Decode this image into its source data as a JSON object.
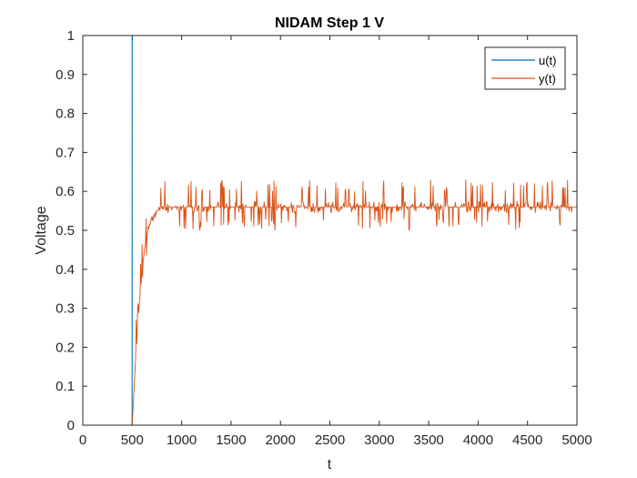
{
  "chart_data": {
    "type": "line",
    "title": "NIDAM Step 1 V",
    "xlabel": "t",
    "ylabel": "Voltage",
    "xlim": [
      0,
      5000
    ],
    "ylim": [
      0,
      1
    ],
    "xticks": [
      0,
      500,
      1000,
      1500,
      2000,
      2500,
      3000,
      3500,
      4000,
      4500,
      5000
    ],
    "xtick_labels": [
      "0",
      "500",
      "1000",
      "1500",
      "2000",
      "2500",
      "3000",
      "3500",
      "4000",
      "4500",
      "5000"
    ],
    "yticks": [
      0,
      0.1,
      0.2,
      0.3,
      0.4,
      0.5,
      0.6,
      0.7,
      0.8,
      0.9,
      1
    ],
    "ytick_labels": [
      "0",
      "0.1",
      "0.2",
      "0.3",
      "0.4",
      "0.5",
      "0.6",
      "0.7",
      "0.8",
      "0.9",
      "1"
    ],
    "grid": false,
    "legend_position": "top-right",
    "series": [
      {
        "name": "u(t)",
        "color": "#0072bd",
        "x": [
          0,
          499,
          500,
          5000
        ],
        "y": [
          0,
          0,
          1,
          1
        ]
      },
      {
        "name": "y(t)",
        "color": "#d95319",
        "x": [
          0,
          500,
          520,
          540,
          560,
          580,
          600,
          620,
          640,
          660,
          680,
          700,
          720,
          740,
          760,
          780,
          800,
          850,
          900,
          1000,
          1100,
          1200,
          1300,
          1400,
          1500,
          1600,
          1700,
          1800,
          1900,
          2000,
          2100,
          2200,
          2300,
          2400,
          2500,
          2600,
          2700,
          2800,
          2900,
          3000,
          3100,
          3200,
          3300,
          3400,
          3500,
          3600,
          3700,
          3800,
          3900,
          4000,
          4100,
          4200,
          4300,
          4400,
          4500,
          4600,
          4700,
          4800,
          4900,
          5000
        ],
        "y": [
          0,
          0,
          0.1,
          0.2,
          0.27,
          0.34,
          0.4,
          0.44,
          0.48,
          0.5,
          0.52,
          0.53,
          0.54,
          0.55,
          0.55,
          0.56,
          0.56,
          0.56,
          0.56,
          0.56,
          0.56,
          0.56,
          0.56,
          0.56,
          0.56,
          0.56,
          0.56,
          0.56,
          0.56,
          0.56,
          0.56,
          0.56,
          0.56,
          0.56,
          0.56,
          0.56,
          0.56,
          0.56,
          0.56,
          0.56,
          0.56,
          0.56,
          0.56,
          0.56,
          0.56,
          0.56,
          0.56,
          0.56,
          0.56,
          0.56,
          0.56,
          0.56,
          0.56,
          0.56,
          0.56,
          0.56,
          0.56,
          0.56,
          0.56,
          0.56
        ]
      }
    ]
  }
}
